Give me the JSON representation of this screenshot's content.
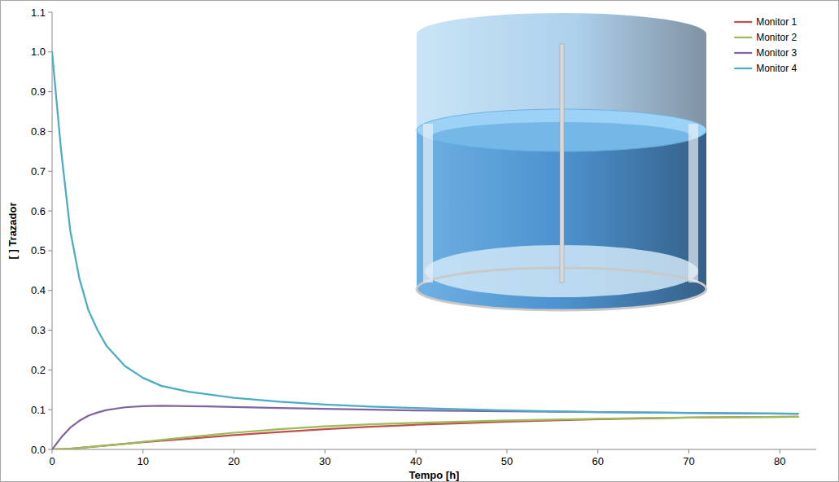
{
  "chart_data": {
    "type": "line",
    "x_label": "Tempo [h]",
    "y_label": "[ ] Trazador",
    "x": [
      0,
      1,
      2,
      3,
      4,
      5,
      6,
      8,
      10,
      12,
      15,
      20,
      25,
      30,
      35,
      40,
      45,
      50,
      55,
      60,
      65,
      70,
      75,
      82
    ],
    "series": [
      {
        "name": "Monitor 1",
        "color": "#c0504d",
        "values": [
          0,
          0.001,
          0.002,
          0.004,
          0.006,
          0.008,
          0.01,
          0.014,
          0.018,
          0.022,
          0.027,
          0.036,
          0.044,
          0.051,
          0.057,
          0.062,
          0.066,
          0.07,
          0.073,
          0.076,
          0.078,
          0.08,
          0.081,
          0.082
        ]
      },
      {
        "name": "Monitor 2",
        "color": "#9bbb59",
        "values": [
          0,
          0.001,
          0.002,
          0.004,
          0.006,
          0.008,
          0.01,
          0.014,
          0.019,
          0.024,
          0.031,
          0.042,
          0.051,
          0.058,
          0.063,
          0.067,
          0.07,
          0.073,
          0.075,
          0.077,
          0.079,
          0.08,
          0.081,
          0.082
        ]
      },
      {
        "name": "Monitor 3",
        "color": "#8064a2",
        "values": [
          0,
          0.03,
          0.055,
          0.072,
          0.085,
          0.093,
          0.099,
          0.106,
          0.109,
          0.11,
          0.109,
          0.107,
          0.104,
          0.102,
          0.1,
          0.098,
          0.097,
          0.096,
          0.095,
          0.094,
          0.093,
          0.092,
          0.091,
          0.09
        ]
      },
      {
        "name": "Monitor 4",
        "color": "#4bacc6",
        "values": [
          1,
          0.75,
          0.55,
          0.43,
          0.35,
          0.3,
          0.26,
          0.21,
          0.18,
          0.16,
          0.145,
          0.13,
          0.12,
          0.113,
          0.108,
          0.104,
          0.101,
          0.098,
          0.096,
          0.094,
          0.093,
          0.092,
          0.091,
          0.09
        ]
      }
    ],
    "xlim": [
      0,
      84
    ],
    "xticks": [
      0,
      10,
      20,
      30,
      40,
      50,
      60,
      70,
      80
    ],
    "ylim": [
      0,
      1.1
    ],
    "yticks": [
      {
        "value": 0,
        "label": "0.0"
      },
      0.1,
      0.2,
      0.3,
      0.4,
      0.5,
      0.6,
      0.7,
      0.8,
      0.9,
      {
        "value": 1,
        "label": "1.0"
      },
      1.1
    ],
    "grid": false,
    "legend": "upper right"
  }
}
